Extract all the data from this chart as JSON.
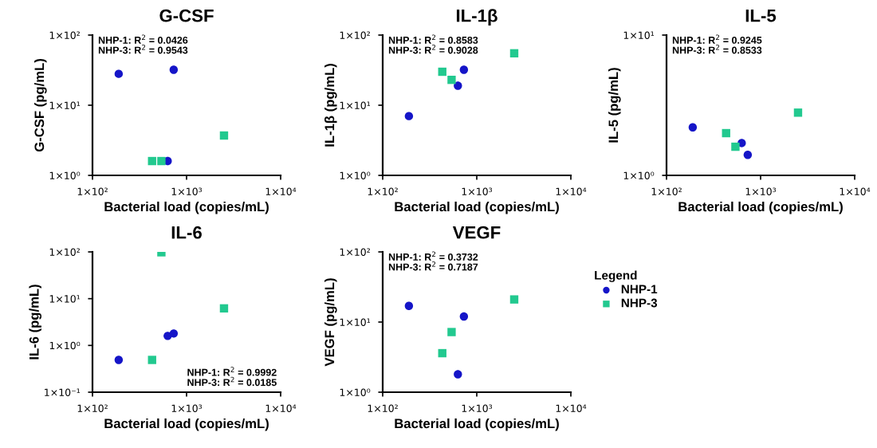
{
  "chart_data": [
    {
      "type": "scatter",
      "title": "G-CSF",
      "xlabel": "Bacterial load (copies/mL)",
      "ylabel": "G-CSF (pg/mL)",
      "log": "xy",
      "grid": false,
      "legend": "right",
      "legend_title": "Legend",
      "xlim": [
        100,
        10000
      ],
      "xticks": [
        {
          "value": 100,
          "label": "1×10²"
        },
        {
          "value": 1000,
          "label": "1×10³"
        },
        {
          "value": 10000,
          "label": "1×10⁴"
        }
      ],
      "ylim": [
        1,
        100
      ],
      "yticks": [
        {
          "value": 1,
          "label": "1×10⁰"
        },
        {
          "value": 10,
          "label": "1×10¹"
        },
        {
          "value": 100,
          "label": "1×10²"
        }
      ],
      "annotations": [
        "NHP-1: R$^{2}$ = 0.0426",
        "NHP-3: R$^{2}$ = 0.9543"
      ],
      "series": [
        {
          "name": "NHP-1",
          "color": "#1515c8",
          "marker": "circle",
          "x": [
            190,
            630,
            730
          ],
          "values": [
            28,
            1.6,
            32
          ]
        },
        {
          "name": "NHP-3",
          "color": "#22c98f",
          "marker": "square",
          "x": [
            430,
            540,
            2500
          ],
          "values": [
            1.6,
            1.6,
            3.7
          ]
        }
      ]
    },
    {
      "type": "scatter",
      "title": "IL-1β",
      "xlabel": "Bacterial load (copies/mL)",
      "ylabel": "IL-1β (pg/mL)",
      "log": "xy",
      "grid": false,
      "xlim": [
        100,
        10000
      ],
      "xticks": [
        {
          "value": 100,
          "label": "1×10²"
        },
        {
          "value": 1000,
          "label": "1×10³"
        },
        {
          "value": 10000,
          "label": "1×10⁴"
        }
      ],
      "ylim": [
        1,
        100
      ],
      "yticks": [
        {
          "value": 1,
          "label": "1×10⁰"
        },
        {
          "value": 10,
          "label": "1×10¹"
        },
        {
          "value": 100,
          "label": "1×10²"
        }
      ],
      "annotations": [
        "NHP-1: R$^{2}$ = 0.8583",
        "NHP-3: R$^{2}$ = 0.9028"
      ],
      "series": [
        {
          "color": "#1515c8",
          "marker": "circle",
          "x": [
            190,
            630,
            730
          ],
          "values": [
            7.0,
            19,
            32
          ]
        },
        {
          "color": "#22c98f",
          "marker": "square",
          "x": [
            430,
            540,
            2500
          ],
          "values": [
            30,
            23,
            55
          ]
        }
      ]
    },
    {
      "type": "scatter",
      "title": "IL-5",
      "xlabel": "Bacterial load (copies/mL)",
      "ylabel": "IL-5 (pg/mL)",
      "log": "xy",
      "grid": false,
      "xlim": [
        100,
        10000
      ],
      "xticks": [
        {
          "value": 100,
          "label": "1×10²"
        },
        {
          "value": 1000,
          "label": "1×10³"
        },
        {
          "value": 10000,
          "label": "1×10⁴"
        }
      ],
      "ylim": [
        1,
        10
      ],
      "yticks": [
        {
          "value": 1,
          "label": "1×10⁰"
        },
        {
          "value": 10,
          "label": "1×10¹"
        }
      ],
      "annotations": [
        "NHP-1: R$^{2}$ = 0.9245",
        "NHP-3: R$^{2}$ = 0.8533"
      ],
      "series": [
        {
          "color": "#1515c8",
          "marker": "circle",
          "x": [
            190,
            630,
            730
          ],
          "values": [
            2.2,
            1.7,
            1.4
          ]
        },
        {
          "color": "#22c98f",
          "marker": "square",
          "x": [
            430,
            540,
            2500
          ],
          "values": [
            2.0,
            1.6,
            2.8
          ]
        }
      ]
    },
    {
      "type": "scatter",
      "title": "IL-6",
      "xlabel": "Bacterial load (copies/mL)",
      "ylabel": "IL-6 (pg/mL)",
      "log": "xy",
      "grid": false,
      "xlim": [
        100,
        10000
      ],
      "xticks": [
        {
          "value": 100,
          "label": "1×10²"
        },
        {
          "value": 1000,
          "label": "1×10³"
        },
        {
          "value": 10000,
          "label": "1×10⁴"
        }
      ],
      "ylim": [
        0.1,
        100
      ],
      "yticks": [
        {
          "value": 0.1,
          "label": "1×10⁻¹"
        },
        {
          "value": 1,
          "label": "1×10⁰"
        },
        {
          "value": 10,
          "label": "1×10¹"
        },
        {
          "value": 100,
          "label": "1×10²"
        }
      ],
      "annotations": [
        "NHP-1: R$^{2}$ = 0.9992",
        "NHP-3: R$^{2}$ = 0.0185"
      ],
      "series": [
        {
          "color": "#1515c8",
          "marker": "circle",
          "x": [
            190,
            630,
            730
          ],
          "values": [
            0.49,
            1.6,
            1.8
          ]
        },
        {
          "color": "#22c98f",
          "marker": "square",
          "x": [
            430,
            540,
            2500
          ],
          "values": [
            0.49,
            98,
            6.2
          ]
        }
      ]
    },
    {
      "type": "scatter",
      "title": "VEGF",
      "xlabel": "Bacterial load (copies/mL)",
      "ylabel": "VEGF (pg/mL)",
      "log": "xy",
      "grid": false,
      "xlim": [
        100,
        10000
      ],
      "xticks": [
        {
          "value": 100,
          "label": "1×10²"
        },
        {
          "value": 1000,
          "label": "1×10³"
        },
        {
          "value": 10000,
          "label": "1×10⁴"
        }
      ],
      "ylim": [
        1,
        100
      ],
      "yticks": [
        {
          "value": 1,
          "label": "1×10⁰"
        },
        {
          "value": 10,
          "label": "1×10¹"
        },
        {
          "value": 100,
          "label": "1×10²"
        }
      ],
      "annotations": [
        "NHP-1: R$^{2}$ = 0.3732",
        "NHP-3: R$^{2}$ = 0.7187"
      ],
      "series": [
        {
          "color": "#1515c8",
          "marker": "circle",
          "x": [
            190,
            630,
            730
          ],
          "values": [
            17,
            1.8,
            12
          ]
        },
        {
          "color": "#22c98f",
          "marker": "square",
          "x": [
            430,
            540,
            2500
          ],
          "values": [
            3.6,
            7.2,
            21
          ]
        }
      ]
    }
  ]
}
